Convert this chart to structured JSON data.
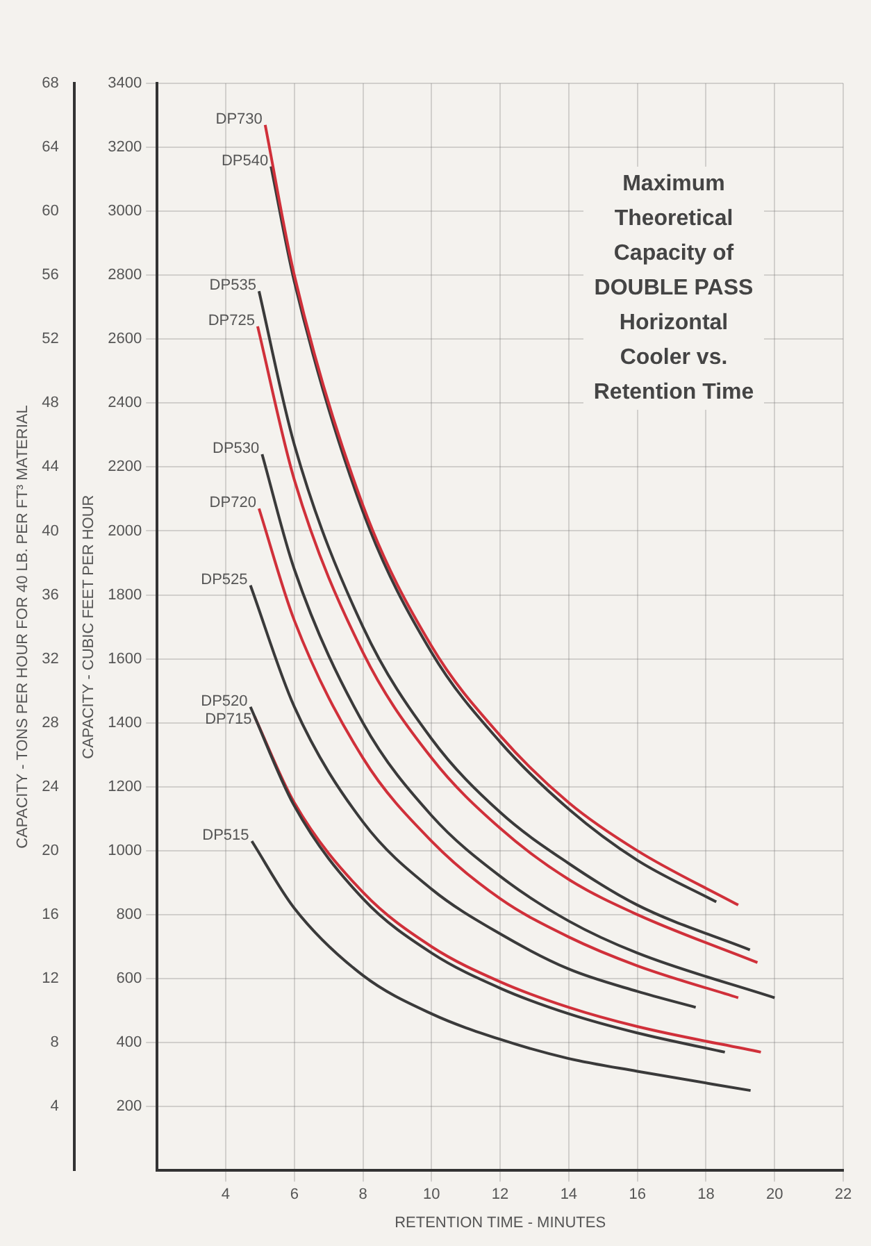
{
  "chart_data": {
    "type": "line",
    "title": "Maximum Theoretical Capacity of DOUBLE PASS Horizontal Cooler vs. Retention Time",
    "xlabel": "RETENTION TIME - MINUTES",
    "ylabel": "CAPACITY - CUBIC FEET PER HOUR",
    "y2label": "CAPACITY - TONS PER HOUR FOR 40 LB. PER FT³ MATERIAL",
    "xlim": [
      2,
      22
    ],
    "xticks": [
      4,
      6,
      8,
      10,
      12,
      14,
      16,
      18,
      20,
      22
    ],
    "ylim": [
      0,
      3400
    ],
    "yticks": [
      200,
      400,
      600,
      800,
      1000,
      1200,
      1400,
      1600,
      1800,
      2000,
      2200,
      2400,
      2600,
      2800,
      3000,
      3200,
      3400
    ],
    "y2lim": [
      0,
      68
    ],
    "y2ticks": [
      4,
      8,
      12,
      16,
      20,
      24,
      28,
      32,
      36,
      40,
      44,
      48,
      52,
      56,
      60,
      64,
      68
    ],
    "grid": true,
    "legend": false,
    "marker": "none",
    "line_style": "solid",
    "series": [
      {
        "name": "DP730",
        "color": "#d0303a",
        "x": [
          5.15,
          6,
          8,
          10,
          12,
          14,
          16,
          18.94
        ],
        "values": [
          3270,
          2800,
          2080,
          1640,
          1360,
          1150,
          1000,
          830
        ]
      },
      {
        "name": "DP540",
        "color": "#3a3a3a",
        "x": [
          5.32,
          6,
          8,
          10,
          12,
          14,
          16,
          18.3
        ],
        "values": [
          3140,
          2780,
          2060,
          1620,
          1340,
          1130,
          970,
          840
        ]
      },
      {
        "name": "DP535",
        "color": "#3a3a3a",
        "x": [
          4.97,
          6,
          8,
          10,
          12,
          14,
          16,
          19.28
        ],
        "values": [
          2750,
          2270,
          1700,
          1350,
          1120,
          960,
          830,
          690
        ]
      },
      {
        "name": "DP725",
        "color": "#d0303a",
        "x": [
          4.93,
          6,
          8,
          10,
          12,
          14,
          16,
          19.5
        ],
        "values": [
          2640,
          2160,
          1620,
          1290,
          1070,
          910,
          800,
          650
        ]
      },
      {
        "name": "DP530",
        "color": "#3a3a3a",
        "x": [
          5.06,
          6,
          8,
          10,
          12,
          14,
          16,
          20
        ],
        "values": [
          2240,
          1880,
          1400,
          1110,
          920,
          780,
          680,
          540
        ]
      },
      {
        "name": "DP720",
        "color": "#d0303a",
        "x": [
          4.97,
          6,
          8,
          10,
          12,
          14,
          16,
          18.94
        ],
        "values": [
          2070,
          1720,
          1290,
          1030,
          850,
          730,
          640,
          540
        ]
      },
      {
        "name": "DP525",
        "color": "#3a3a3a",
        "x": [
          4.72,
          6,
          8,
          10,
          12,
          14,
          16,
          17.7
        ],
        "values": [
          1830,
          1450,
          1090,
          880,
          740,
          630,
          560,
          510
        ]
      },
      {
        "name": "DP520",
        "color": "#3a3a3a",
        "x": [
          4.72,
          6,
          8,
          10,
          12,
          14,
          16,
          18.55
        ],
        "values": [
          1450,
          1140,
          850,
          680,
          570,
          490,
          430,
          370
        ]
      },
      {
        "name": "DP715",
        "color": "#d0303a",
        "x": [
          4.84,
          6,
          8,
          10,
          12,
          14,
          16,
          19.6
        ],
        "values": [
          1420,
          1150,
          870,
          700,
          590,
          510,
          450,
          370
        ]
      },
      {
        "name": "DP515",
        "color": "#3a3a3a",
        "x": [
          4.76,
          6,
          8,
          10,
          12,
          14,
          16,
          19.3
        ],
        "values": [
          1030,
          820,
          610,
          490,
          410,
          350,
          310,
          250
        ]
      }
    ]
  }
}
